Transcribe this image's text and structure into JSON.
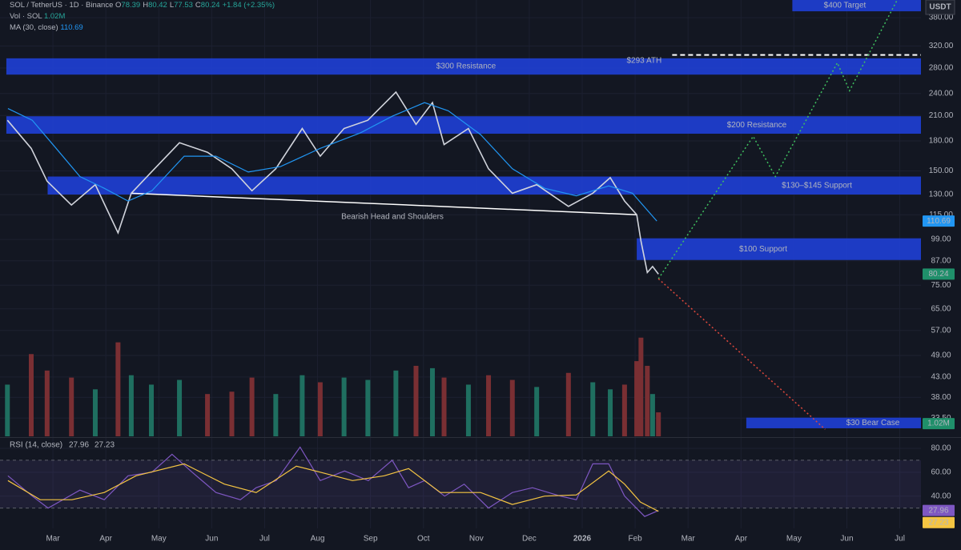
{
  "quote": "USDT",
  "chart_data": [
    {
      "type": "line",
      "title": "SOL / TetherUS · 1D · Binance",
      "ohlc": [
        {
          "label": "O",
          "value": 78.39
        },
        {
          "label": "H",
          "value": 80.42
        },
        {
          "label": "L",
          "value": 77.53
        },
        {
          "label": "C",
          "value": 80.24
        }
      ],
      "change": "+1.84 (+2.35%)",
      "log_scale": true,
      "grid": true,
      "xlim": [
        1.0,
        18.4
      ],
      "xticks": [
        {
          "value": 2,
          "label": "Mar"
        },
        {
          "value": 3,
          "label": "Apr"
        },
        {
          "value": 4,
          "label": "May"
        },
        {
          "value": 5,
          "label": "Jun"
        },
        {
          "value": 6,
          "label": "Jul"
        },
        {
          "value": 7,
          "label": "Aug"
        },
        {
          "value": 8,
          "label": "Sep"
        },
        {
          "value": 9,
          "label": "Oct"
        },
        {
          "value": 10,
          "label": "Nov"
        },
        {
          "value": 11,
          "label": "Dec"
        },
        {
          "value": 12,
          "label": "2026"
        },
        {
          "value": 13,
          "label": "Feb"
        },
        {
          "value": 14,
          "label": "Mar"
        },
        {
          "value": 15,
          "label": "Apr"
        },
        {
          "value": 16,
          "label": "May"
        },
        {
          "value": 17,
          "label": "Jun"
        },
        {
          "value": 18,
          "label": "Jul"
        }
      ],
      "ylim": [
        30,
        423
      ],
      "yticks": [
        {
          "value": 380,
          "label": "380.00"
        },
        {
          "value": 320,
          "label": "320.00"
        },
        {
          "value": 280,
          "label": "280.00"
        },
        {
          "value": 240,
          "label": "240.00"
        },
        {
          "value": 210,
          "label": "210.00"
        },
        {
          "value": 180,
          "label": "180.00"
        },
        {
          "value": 150,
          "label": "150.00"
        },
        {
          "value": 130,
          "label": "130.00"
        },
        {
          "value": 115,
          "label": "115.00"
        },
        {
          "value": 99,
          "label": "99.00"
        },
        {
          "value": 87,
          "label": "87.00"
        },
        {
          "value": 75,
          "label": "75.00"
        },
        {
          "value": 65,
          "label": "65.00"
        },
        {
          "value": 57,
          "label": "57.00"
        },
        {
          "value": 49,
          "label": "49.00"
        },
        {
          "value": 43,
          "label": "43.00"
        },
        {
          "value": 38,
          "label": "38.00"
        },
        {
          "value": 33.5,
          "label": "33.50"
        }
      ],
      "series": [
        {
          "color": "#d1d4dc",
          "x": [
            1.14,
            1.59,
            1.89,
            2.35,
            2.8,
            3.23,
            3.48,
            3.86,
            4.39,
            4.92,
            5.38,
            5.76,
            6.21,
            6.71,
            7.05,
            7.5,
            7.95,
            8.48,
            8.86,
            9.17,
            9.39,
            9.85,
            10.23,
            10.68,
            11.14,
            11.74,
            12.2,
            12.53,
            12.8,
            13.03,
            13.11,
            13.23,
            13.33,
            13.44
          ],
          "values": [
            204,
            172,
            141,
            122,
            138,
            103,
            131,
            149,
            178,
            168,
            152,
            133,
            152,
            194,
            164,
            194,
            204,
            242,
            199,
            227,
            176,
            194,
            152,
            131,
            138,
            121,
            131,
            144,
            125,
            115,
            98,
            81,
            84,
            80.24
          ]
        },
        {
          "name": "MA (30, close)",
          "color": "#2196f3",
          "last": 110.69,
          "x": [
            1.15,
            1.61,
            2.06,
            2.51,
            2.97,
            3.42,
            3.87,
            4.48,
            5.08,
            5.69,
            6.3,
            7.05,
            7.81,
            8.41,
            9.02,
            9.47,
            10.08,
            10.68,
            11.29,
            11.89,
            12.5,
            12.95,
            13.41
          ],
          "values": [
            219,
            204,
            172,
            145,
            135,
            125,
            133,
            164,
            164,
            149,
            154,
            172,
            189,
            209,
            227,
            216,
            187,
            152,
            135,
            129,
            137,
            131,
            110.69
          ]
        }
      ],
      "zone_color": "#1f3fd6",
      "zones": [
        {
          "label": "$300 Resistance",
          "range": [
            269,
            297
          ],
          "x": [
            1.12,
            18.4
          ]
        },
        {
          "label": "$200 Resistance",
          "range": [
            188,
            209
          ],
          "x": [
            1.12,
            18.4
          ]
        },
        {
          "label": "$130–$145 Support",
          "range": [
            130,
            145
          ],
          "x": [
            1.9,
            18.4
          ]
        },
        {
          "label": "$100 Support",
          "range": [
            87.4,
            99.7
          ],
          "x": [
            13.03,
            18.4
          ]
        },
        {
          "label": "$30 Bear Case",
          "range": [
            31.5,
            33.6
          ],
          "x": [
            15.1,
            18.4
          ]
        },
        {
          "label": "$400 Target",
          "range": [
            395,
            423
          ],
          "x": [
            15.97,
            18.4
          ]
        }
      ],
      "ath": {
        "label": "$293 ATH",
        "value": 293,
        "x": [
          13.7,
          18.4
        ]
      },
      "neckline": {
        "label": "Bearish Head and Shoulders",
        "x": [
          3.48,
          13.03
        ],
        "values": [
          131,
          115
        ]
      },
      "projections": [
        {
          "color": "#3fbf5f",
          "x": [
            13.44,
            15.23,
            15.65,
            16.82,
            17.05,
            17.95
          ],
          "values": [
            78,
            185,
            145,
            289,
            244,
            423
          ]
        },
        {
          "color": "#e0483c",
          "x": [
            13.44,
            16.59
          ],
          "values": [
            78,
            31.3
          ]
        }
      ]
    },
    {
      "type": "bar",
      "name": "Vol · SOL",
      "color_up": "#1f6f60",
      "color_down": "#7a2f33",
      "ylim": [
        0,
        4.6
      ],
      "last": {
        "value": 1.02,
        "label": "1.02M"
      },
      "x": [
        1.14,
        1.59,
        1.89,
        2.35,
        2.8,
        3.23,
        3.48,
        3.86,
        4.39,
        4.92,
        5.38,
        5.76,
        6.21,
        6.71,
        7.05,
        7.5,
        7.95,
        8.48,
        8.86,
        9.17,
        9.39,
        9.85,
        10.23,
        10.68,
        11.14,
        11.74,
        12.2,
        12.53,
        12.8,
        13.03,
        13.11,
        13.23,
        13.33,
        13.44
      ],
      "values": [
        2.2,
        3.5,
        2.8,
        2.5,
        2.0,
        4.0,
        2.6,
        2.2,
        2.4,
        1.8,
        1.9,
        2.5,
        1.8,
        2.6,
        2.3,
        2.5,
        2.4,
        2.8,
        3.0,
        2.9,
        2.5,
        2.2,
        2.6,
        2.4,
        2.1,
        2.7,
        2.3,
        2.0,
        2.2,
        3.2,
        4.2,
        3.0,
        1.8,
        1.02
      ]
    },
    {
      "type": "line",
      "ylim": [
        13,
        88
      ],
      "band": [
        30,
        70
      ],
      "yticks": [
        {
          "value": 80,
          "label": "80.00"
        },
        {
          "value": 60,
          "label": "60.00"
        },
        {
          "value": 40,
          "label": "40.00"
        }
      ],
      "series": [
        {
          "name": "RSI (14, close)",
          "color": "#7e57c2",
          "last": 27.96,
          "x": [
            1.15,
            1.61,
            1.91,
            2.51,
            2.97,
            3.42,
            3.87,
            4.25,
            4.63,
            5.08,
            5.54,
            5.84,
            6.22,
            6.67,
            7.05,
            7.51,
            7.96,
            8.41,
            8.72,
            9.02,
            9.4,
            9.77,
            10.23,
            10.68,
            11.06,
            11.59,
            11.89,
            12.2,
            12.5,
            12.8,
            13.18,
            13.44
          ],
          "values": [
            57,
            40,
            30,
            45,
            37,
            57,
            60,
            75,
            60,
            43,
            37,
            47,
            53,
            81,
            53,
            61,
            53,
            70,
            47,
            53,
            40,
            50,
            30,
            43,
            47,
            40,
            37,
            67,
            67,
            40,
            23,
            27.96
          ]
        },
        {
          "color": "#f5c542",
          "last": 27.23,
          "x": [
            1.15,
            1.76,
            2.36,
            2.97,
            3.57,
            4.48,
            5.24,
            5.84,
            6.6,
            7.05,
            7.66,
            8.26,
            8.72,
            9.32,
            10.08,
            10.68,
            11.29,
            11.89,
            12.5,
            12.8,
            13.1,
            13.44
          ],
          "values": [
            53,
            37,
            37,
            43,
            57,
            67,
            50,
            43,
            65,
            60,
            53,
            57,
            63,
            43,
            43,
            33,
            40,
            41,
            61,
            50,
            35,
            27.23
          ]
        }
      ]
    }
  ]
}
